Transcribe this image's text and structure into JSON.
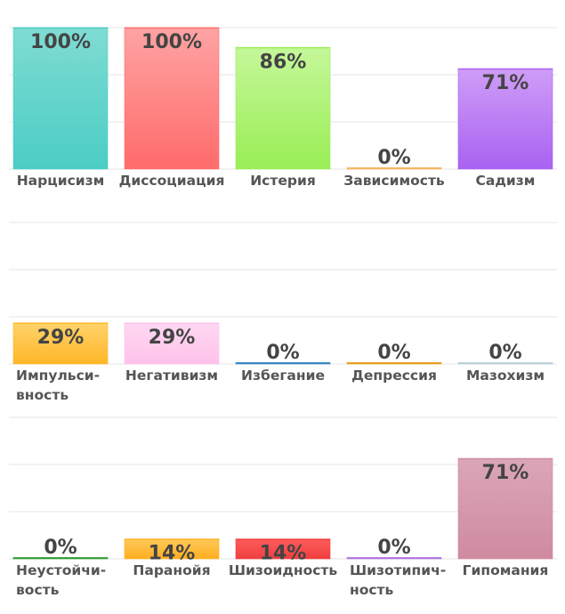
{
  "chart_data": {
    "type": "bar",
    "ylim": [
      0,
      100
    ],
    "unit": "%",
    "grid": true,
    "panels": [
      {
        "categories": [
          "Нарцисизм",
          "Диссоциация",
          "Истерия",
          "Зависимость",
          "Садизм"
        ],
        "values": [
          100,
          100,
          86,
          0,
          71
        ],
        "value_labels": [
          "100%",
          "100%",
          "86%",
          "0%",
          "71%"
        ],
        "labels": [
          [
            "Нарцисизм"
          ],
          [
            "Диссоциация"
          ],
          [
            "Истерия"
          ],
          [
            "Зависимость"
          ],
          [
            "Садизм"
          ]
        ],
        "colors_top": [
          "#7fdcd3",
          "#ffa3a3",
          "#c5f79a",
          "#ffd9a8",
          "#cf9df7"
        ],
        "colors_bottom": [
          "#4bcdc4",
          "#ff6b6b",
          "#99ee55",
          "#f5b05a",
          "#a962f2"
        ]
      },
      {
        "categories": [
          "Импульсивность",
          "Негативизм",
          "Избегание",
          "Депрессия",
          "Мазохизм"
        ],
        "values": [
          29,
          29,
          0,
          0,
          0
        ],
        "value_labels": [
          "29%",
          "29%",
          "0%",
          "0%",
          "0%"
        ],
        "labels": [
          [
            "Импульси-",
            "вность"
          ],
          [
            "Негативизм"
          ],
          [
            "Избегание"
          ],
          [
            "Депрессия"
          ],
          [
            "Мазохизм"
          ]
        ],
        "colors_top": [
          "#ffd36b",
          "#ffd8f2",
          "#5aa0d0",
          "#f5b030",
          "#d6e4ea"
        ],
        "colors_bottom": [
          "#ffb628",
          "#ffc2ea",
          "#2f80c0",
          "#e89a10",
          "#b8cdd6"
        ]
      },
      {
        "categories": [
          "Неустойчивость",
          "Паранойя",
          "Шизоидность",
          "Шизотипичность",
          "Гипомания"
        ],
        "values": [
          0,
          14,
          14,
          0,
          71
        ],
        "value_labels": [
          "0%",
          "14%",
          "14%",
          "0%",
          "71%"
        ],
        "labels": [
          [
            "Неустойчи-",
            "вость"
          ],
          [
            "Паранойя"
          ],
          [
            "Шизоидность"
          ],
          [
            "Шизотипич-",
            "ность"
          ],
          [
            "Гипомания"
          ]
        ],
        "colors_top": [
          "#5bb85b",
          "#ffc95a",
          "#ff5d5d",
          "#c79de8",
          "#dba6b8"
        ],
        "colors_bottom": [
          "#2e9a2e",
          "#ffae1f",
          "#f03e3e",
          "#ad70dd",
          "#cf8aa0"
        ]
      }
    ]
  }
}
